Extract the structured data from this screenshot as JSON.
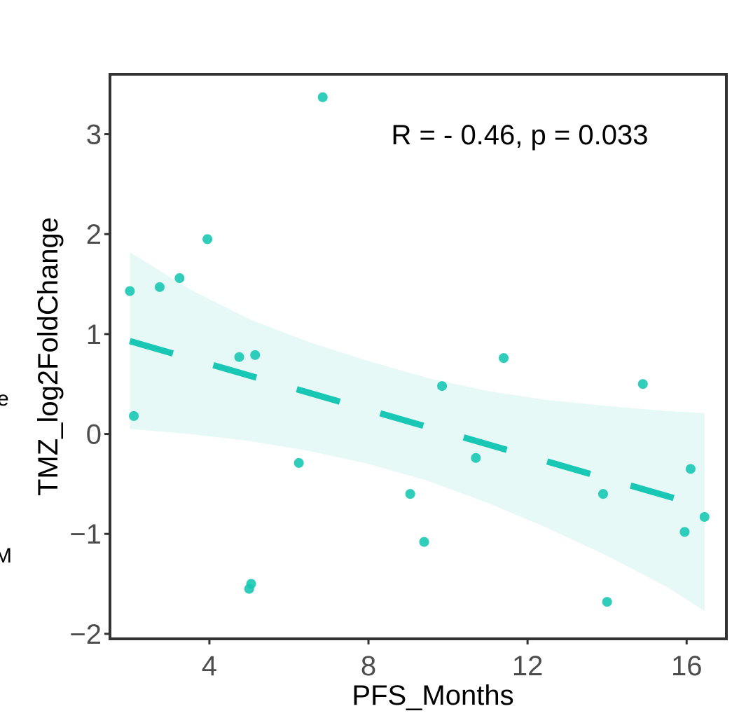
{
  "chart_data": {
    "type": "scatter",
    "xlabel": "PFS_Months",
    "ylabel": "TMZ_log2FoldChange",
    "xlim": [
      1.5,
      17.0
    ],
    "ylim": [
      -2.05,
      3.6
    ],
    "x_ticks": [
      4,
      8,
      12,
      16
    ],
    "x_tick_labels": [
      "4",
      "8",
      "12",
      "16"
    ],
    "y_ticks": [
      -2,
      -1,
      0,
      1,
      2,
      3
    ],
    "y_tick_labels": [
      "−2",
      "−1",
      "0",
      "1",
      "2",
      "3"
    ],
    "annotation": "R = - 0.46, p = 0.033",
    "grid": false,
    "point_color": "#19c8b4",
    "line_color": "#19c8b4",
    "band_color": "#e6f9f7",
    "points": [
      {
        "x": 2.0,
        "y": 1.43
      },
      {
        "x": 2.1,
        "y": 0.18
      },
      {
        "x": 2.75,
        "y": 1.47
      },
      {
        "x": 3.25,
        "y": 1.56
      },
      {
        "x": 3.95,
        "y": 1.95
      },
      {
        "x": 4.75,
        "y": 0.77
      },
      {
        "x": 5.0,
        "y": -1.55
      },
      {
        "x": 5.05,
        "y": -1.5
      },
      {
        "x": 5.15,
        "y": 0.79
      },
      {
        "x": 6.25,
        "y": -0.29
      },
      {
        "x": 6.85,
        "y": 3.37
      },
      {
        "x": 9.05,
        "y": -0.6
      },
      {
        "x": 9.4,
        "y": -1.08
      },
      {
        "x": 9.85,
        "y": 0.48
      },
      {
        "x": 10.7,
        "y": -0.24
      },
      {
        "x": 11.4,
        "y": 0.76
      },
      {
        "x": 13.9,
        "y": -0.6
      },
      {
        "x": 14.0,
        "y": -1.68
      },
      {
        "x": 14.9,
        "y": 0.5
      },
      {
        "x": 15.95,
        "y": -0.98
      },
      {
        "x": 16.1,
        "y": -0.35
      },
      {
        "x": 16.45,
        "y": -0.83
      }
    ],
    "fit_line": {
      "x": [
        2.0,
        16.45
      ],
      "y": [
        0.93,
        -0.73
      ]
    },
    "confidence_band": {
      "x": [
        2.0,
        3.5,
        5.0,
        6.5,
        8.0,
        9.5,
        11.0,
        12.5,
        14.0,
        15.5,
        16.45
      ],
      "upper": [
        1.82,
        1.45,
        1.15,
        0.92,
        0.73,
        0.56,
        0.43,
        0.34,
        0.28,
        0.23,
        0.21
      ],
      "lower": [
        0.05,
        -0.0,
        -0.07,
        -0.17,
        -0.3,
        -0.47,
        -0.69,
        -0.94,
        -1.22,
        -1.53,
        -1.77
      ]
    }
  },
  "edge_fragments": [
    "e",
    "M"
  ]
}
